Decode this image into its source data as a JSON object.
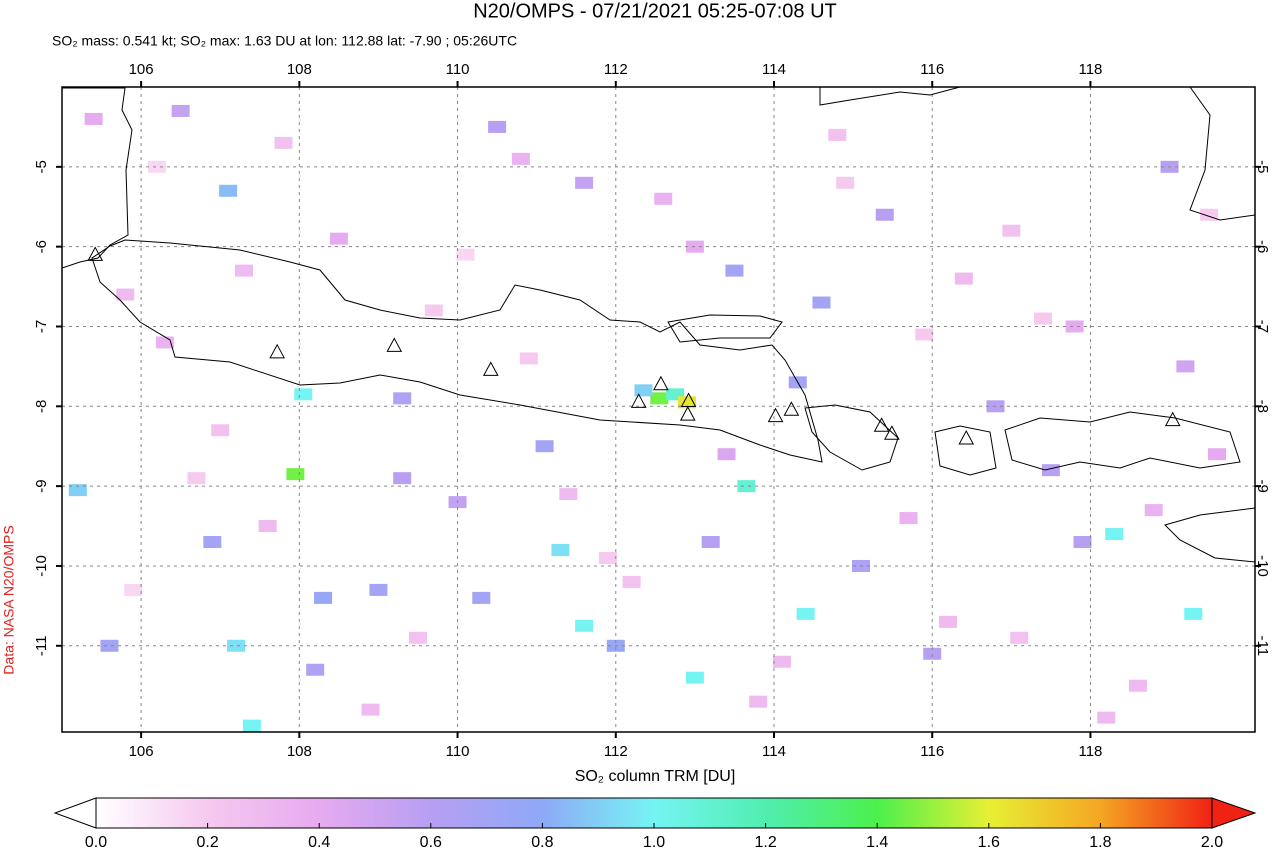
{
  "chart_data": {
    "type": "map",
    "title": "N20/OMPS - 07/21/2021 05:25-07:08 UT",
    "subtitle": "SO₂ mass: 0.541 kt; SO₂ max: 1.63 DU at lon: 112.88 lat: -7.90 ; 05:26UTC",
    "side_label": "Data: NASA N20/OMPS",
    "xlim": [
      105.0,
      120.08
    ],
    "ylim": [
      -12.08,
      -4.0
    ],
    "xticks": [
      106,
      108,
      110,
      112,
      114,
      116,
      118
    ],
    "yticks": [
      -5,
      -6,
      -7,
      -8,
      -9,
      -10,
      -11
    ],
    "grid": true,
    "volcanoes": {
      "lon": [
        105.42,
        107.72,
        109.2,
        110.42,
        112.29,
        112.57,
        112.92,
        112.91,
        114.02,
        114.22,
        115.36,
        115.49,
        116.43,
        119.04
      ],
      "lat": [
        -6.11,
        -7.33,
        -7.25,
        -7.55,
        -7.95,
        -7.73,
        -7.94,
        -8.11,
        -8.13,
        -8.05,
        -8.25,
        -8.35,
        -8.41,
        -8.18
      ]
    },
    "cells": {
      "lon": [
        112.55,
        112.75,
        112.35,
        112.9,
        107.95,
        108.05,
        113.65,
        111.6,
        111.3,
        113.0,
        105.2,
        107.2,
        107.1,
        107.4,
        114.4,
        119.3,
        118.3,
        106.9,
        108.3,
        109.0,
        110.3,
        112.0,
        113.5,
        114.6,
        114.3,
        111.1,
        109.3,
        109.3,
        105.6,
        108.2,
        111.6,
        115.4,
        119.0,
        117.9,
        115.1,
        110.5,
        106.5,
        116.8,
        117.5,
        119.2,
        116.0,
        113.2,
        110.0,
        105.4,
        105.8,
        106.3,
        107.0,
        107.6,
        108.5,
        109.7,
        110.8,
        111.4,
        112.2,
        113.0,
        113.8,
        114.9,
        115.7,
        116.4,
        117.1,
        117.8,
        118.6,
        119.5,
        105.9,
        106.7,
        107.8,
        108.9,
        110.1,
        111.9,
        113.4,
        114.8,
        116.2,
        117.4,
        118.8,
        106.2,
        107.3,
        109.5,
        110.9,
        112.6,
        114.1,
        115.9,
        117.0,
        118.2,
        119.6
      ],
      "lat": [
        -7.9,
        -7.85,
        -7.8,
        -7.95,
        -8.85,
        -7.85,
        -9.0,
        -10.75,
        -9.8,
        -11.4,
        -9.05,
        -11.0,
        -5.3,
        -12.0,
        -10.6,
        -10.6,
        -9.6,
        -9.7,
        -10.4,
        -10.3,
        -10.4,
        -11.0,
        -6.3,
        -6.7,
        -7.7,
        -8.5,
        -8.9,
        -7.9,
        -11.0,
        -11.3,
        -5.2,
        -5.6,
        -5.0,
        -9.7,
        -10.0,
        -4.5,
        -4.3,
        -8.0,
        -8.8,
        -7.5,
        -11.1,
        -9.7,
        -9.2,
        -4.4,
        -6.6,
        -7.2,
        -8.3,
        -9.5,
        -5.9,
        -6.8,
        -4.9,
        -9.1,
        -10.2,
        -6.0,
        -11.7,
        -5.2,
        -9.4,
        -6.4,
        -10.9,
        -7.0,
        -11.5,
        -5.6,
        -10.3,
        -8.9,
        -4.7,
        -11.8,
        -6.1,
        -9.9,
        -8.6,
        -4.6,
        -10.7,
        -6.9,
        -9.3,
        -5.0,
        -6.3,
        -10.9,
        -7.4,
        -5.4,
        -11.2,
        -7.1,
        -5.8,
        -11.9,
        -8.6
      ],
      "values": [
        1.45,
        1.1,
        0.9,
        1.63,
        1.45,
        1.0,
        1.1,
        1.0,
        0.95,
        1.0,
        0.9,
        0.95,
        0.85,
        1.0,
        1.0,
        1.0,
        1.0,
        0.7,
        0.75,
        0.7,
        0.7,
        0.75,
        0.7,
        0.7,
        0.7,
        0.7,
        0.6,
        0.65,
        0.7,
        0.65,
        0.55,
        0.6,
        0.6,
        0.6,
        0.65,
        0.6,
        0.55,
        0.6,
        0.6,
        0.5,
        0.6,
        0.6,
        0.55,
        0.4,
        0.3,
        0.35,
        0.25,
        0.3,
        0.4,
        0.2,
        0.35,
        0.3,
        0.25,
        0.4,
        0.3,
        0.2,
        0.35,
        0.3,
        0.25,
        0.4,
        0.3,
        0.2,
        0.15,
        0.2,
        0.25,
        0.3,
        0.15,
        0.2,
        0.45,
        0.25,
        0.3,
        0.2,
        0.35,
        0.15,
        0.3,
        0.25,
        0.2,
        0.35,
        0.3,
        0.2,
        0.25,
        0.3,
        0.4
      ]
    },
    "colorbar": {
      "label": "SO₂ column TRM [DU]",
      "clim": [
        0.0,
        2.0
      ],
      "colors": [
        "#ffffff",
        "#f6c9ef",
        "#e6aaf0",
        "#b79ff2",
        "#8ea9f6",
        "#76f4f4",
        "#50eeb0",
        "#4cf04c",
        "#e6f034",
        "#f5a623",
        "#f02214"
      ],
      "ticks": [
        {
          "value": 0,
          "label": "0.0"
        },
        {
          "value": 0.2,
          "label": "0.2"
        },
        {
          "value": 0.4,
          "label": "0.4"
        },
        {
          "value": 0.6,
          "label": "0.6"
        },
        {
          "value": 0.8,
          "label": "0.8"
        },
        {
          "value": 1,
          "label": "1.0"
        },
        {
          "value": 1.2,
          "label": "1.2"
        },
        {
          "value": 1.4,
          "label": "1.4"
        },
        {
          "value": 1.6,
          "label": "1.6"
        },
        {
          "value": 1.8,
          "label": "1.8"
        },
        {
          "value": 2,
          "label": "2.0"
        }
      ]
    }
  }
}
